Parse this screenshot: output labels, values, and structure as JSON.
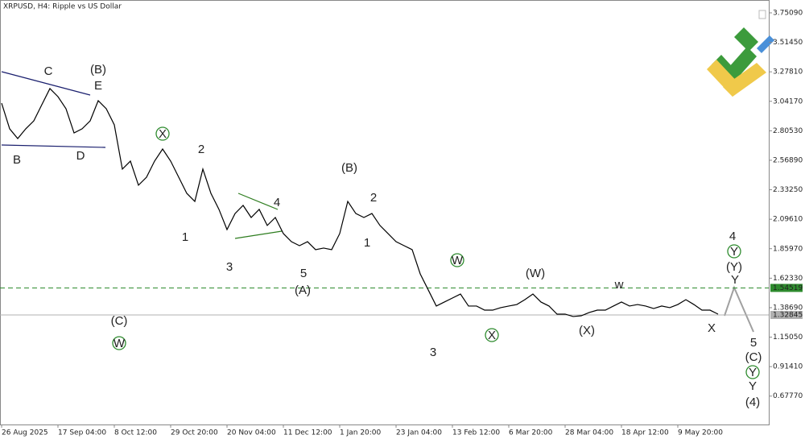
{
  "chart_data": {
    "type": "line",
    "title": "XRPUSD, H4:  Ripple vs US Dollar",
    "categories": [
      "26 Aug 2025",
      null,
      null,
      null,
      null,
      null,
      null,
      "17 Sep 04:00",
      null,
      null,
      null,
      null,
      null,
      null,
      "8 Oct 12:00",
      null,
      null,
      null,
      null,
      null,
      null,
      "29 Oct 20:00",
      null,
      null,
      null,
      null,
      null,
      null,
      "20 Nov 04:00",
      null,
      null,
      null,
      null,
      null,
      null,
      "11 Dec 12:00",
      null,
      null,
      null,
      null,
      null,
      null,
      "1 Jan 20:00",
      null,
      null,
      null,
      null,
      null,
      null,
      "23 Jan 04:00",
      null,
      null,
      null,
      null,
      null,
      null,
      "13 Feb 12:00",
      null,
      null,
      null,
      null,
      null,
      null,
      "6 Mar 20:00",
      null,
      null,
      null,
      null,
      null,
      null,
      "28 Mar 04:00",
      null,
      null,
      null,
      null,
      null,
      null,
      "18 Apr 12:00",
      null,
      null,
      null,
      null,
      null,
      null,
      "9 May 20:00",
      null,
      null,
      null,
      null,
      null
    ],
    "series": [
      {
        "name": "XRPUSD",
        "color": "#000000",
        "values": [
          3.027,
          2.821,
          2.743,
          2.821,
          2.885,
          3.015,
          3.144,
          3.079,
          2.982,
          2.788,
          2.821,
          2.885,
          3.047,
          2.982,
          2.853,
          2.498,
          2.562,
          2.369,
          2.433,
          2.562,
          2.659,
          2.562,
          2.433,
          2.304,
          2.239,
          2.498,
          2.304,
          2.175,
          2.013,
          2.142,
          2.207,
          2.11,
          2.175,
          2.046,
          2.11,
          1.981,
          1.916,
          1.884,
          1.916,
          1.852,
          1.865,
          1.852,
          1.981,
          2.239,
          2.142,
          2.11,
          2.142,
          2.046,
          1.981,
          1.916,
          1.884,
          1.852,
          1.658,
          1.529,
          1.4,
          1.432,
          1.464,
          1.496,
          1.4,
          1.4,
          1.367,
          1.367,
          1.387,
          1.4,
          1.412,
          1.451,
          1.496,
          1.432,
          1.4,
          1.335,
          1.335,
          1.316,
          1.322,
          1.348,
          1.367,
          1.367,
          1.4,
          1.432,
          1.4,
          1.412,
          1.4,
          1.38,
          1.4,
          1.387,
          1.412,
          1.451,
          1.412,
          1.367,
          1.367,
          1.335
        ]
      }
    ],
    "ylim": [
      0.45,
      3.854
    ],
    "yticks": [
      {
        "value": 3.7509,
        "label": "3.75090"
      },
      {
        "value": 3.5145,
        "label": "3.51450"
      },
      {
        "value": 3.2781,
        "label": "3.27810"
      },
      {
        "value": 3.0417,
        "label": "3.04170"
      },
      {
        "value": 2.8053,
        "label": "2.80530"
      },
      {
        "value": 2.5689,
        "label": "2.56890"
      },
      {
        "value": 2.3325,
        "label": "2.33250"
      },
      {
        "value": 2.0961,
        "label": "2.09610"
      },
      {
        "value": 1.8597,
        "label": "1.85970"
      },
      {
        "value": 1.6233,
        "label": "1.62330"
      },
      {
        "value": 1.3869,
        "label": "1.38690"
      },
      {
        "value": 1.1505,
        "label": "1.15050"
      },
      {
        "value": 0.9141,
        "label": "0.91410"
      },
      {
        "value": 0.6777,
        "label": "0.67770"
      }
    ],
    "levels": [
      {
        "value": 1.54519,
        "color": "#2e8b2e"
      },
      {
        "value": 1.32845,
        "color": "#b0b0b0"
      }
    ],
    "annotations": [
      "C",
      "(B)",
      "E",
      "B",
      "D",
      "X",
      "2",
      "1",
      "3",
      "4",
      "5",
      "(A)",
      "(B)",
      "2",
      "1",
      "(C)",
      "W",
      "W",
      "3",
      "X",
      "(W)",
      "(X)",
      "w",
      "X",
      "4",
      "Y",
      "(Y)",
      "Y",
      "5",
      "(C)",
      "Y",
      "Y",
      "(4)"
    ]
  }
}
